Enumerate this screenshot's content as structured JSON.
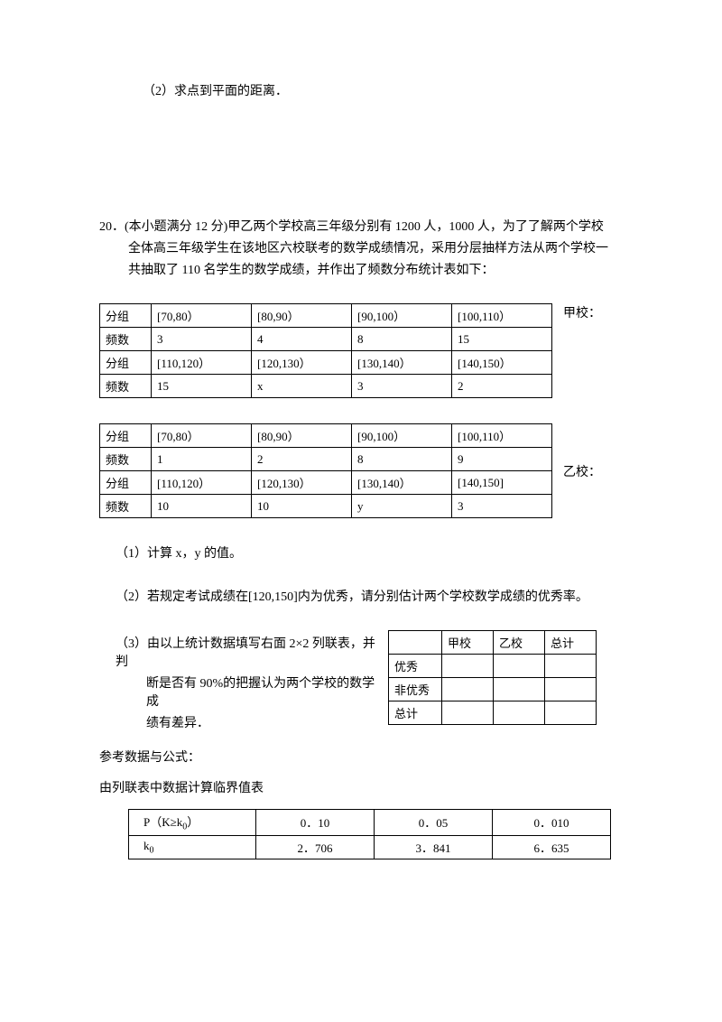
{
  "q2_text": "（2）求点到平面的距离．",
  "q20": {
    "num": "20．",
    "line1": "(本小题满分 12 分)甲乙两个学校高三年级分别有 1200 人，1000 人，为了了解两个学校",
    "line2": "全体高三年级学生在该地区六校联考的数学成绩情况，采用分层抽样方法从两个学校一",
    "line3": "共抽取了 110 名学生的数学成绩，并作出了频数分布统计表如下："
  },
  "table_a_label": "甲校：",
  "table_a": {
    "h1": "分组",
    "h2": "频数",
    "r1": [
      "[70,80）",
      "[80,90）",
      "[90,100）",
      "[100,110）"
    ],
    "r2": [
      "3",
      "4",
      "8",
      "15"
    ],
    "r3": [
      "[110,120）",
      "[120,130）",
      "[130,140）",
      "[140,150）"
    ],
    "r4": [
      "15",
      "x",
      "3",
      "2"
    ]
  },
  "table_b_label": "乙校：",
  "table_b": {
    "h1": "分组",
    "h2": "频数",
    "r1": [
      "[70,80）",
      "[80,90）",
      "[90,100）",
      "[100,110）"
    ],
    "r2": [
      "1",
      "2",
      "8",
      "9"
    ],
    "r3": [
      "[110,120）",
      "[120,130）",
      "[130,140）",
      "[140,150]"
    ],
    "r4": [
      "10",
      "10",
      "y",
      "3"
    ]
  },
  "sub1": "（1）计算 x，y 的值。",
  "sub2": "（2）若规定考试成绩在[120,150]内为优秀，请分别估计两个学校数学成绩的优秀率。",
  "sub3": {
    "l1": "（3）由以上统计数据填写右面 2×2 列联表，并判",
    "l2": "断是否有 90%的把握认为两个学校的数学成",
    "l3": "绩有差异．"
  },
  "ref1": "参考数据与公式：",
  "ref2": "由列联表中数据计算临界值表",
  "ctable": {
    "h_blank": "",
    "h1": "甲校",
    "h2": "乙校",
    "h3": "总计",
    "r1": "优秀",
    "r2": "非优秀",
    "r3": "总计"
  },
  "crit": {
    "h1_a": "P（K≥k",
    "h1_b": "0",
    "h1_c": "）",
    "h2_a": "k",
    "h2_b": "0",
    "c": [
      "0．10",
      "0．05",
      "0．010"
    ],
    "k": [
      "2．706",
      "3．841",
      "6．635"
    ]
  }
}
